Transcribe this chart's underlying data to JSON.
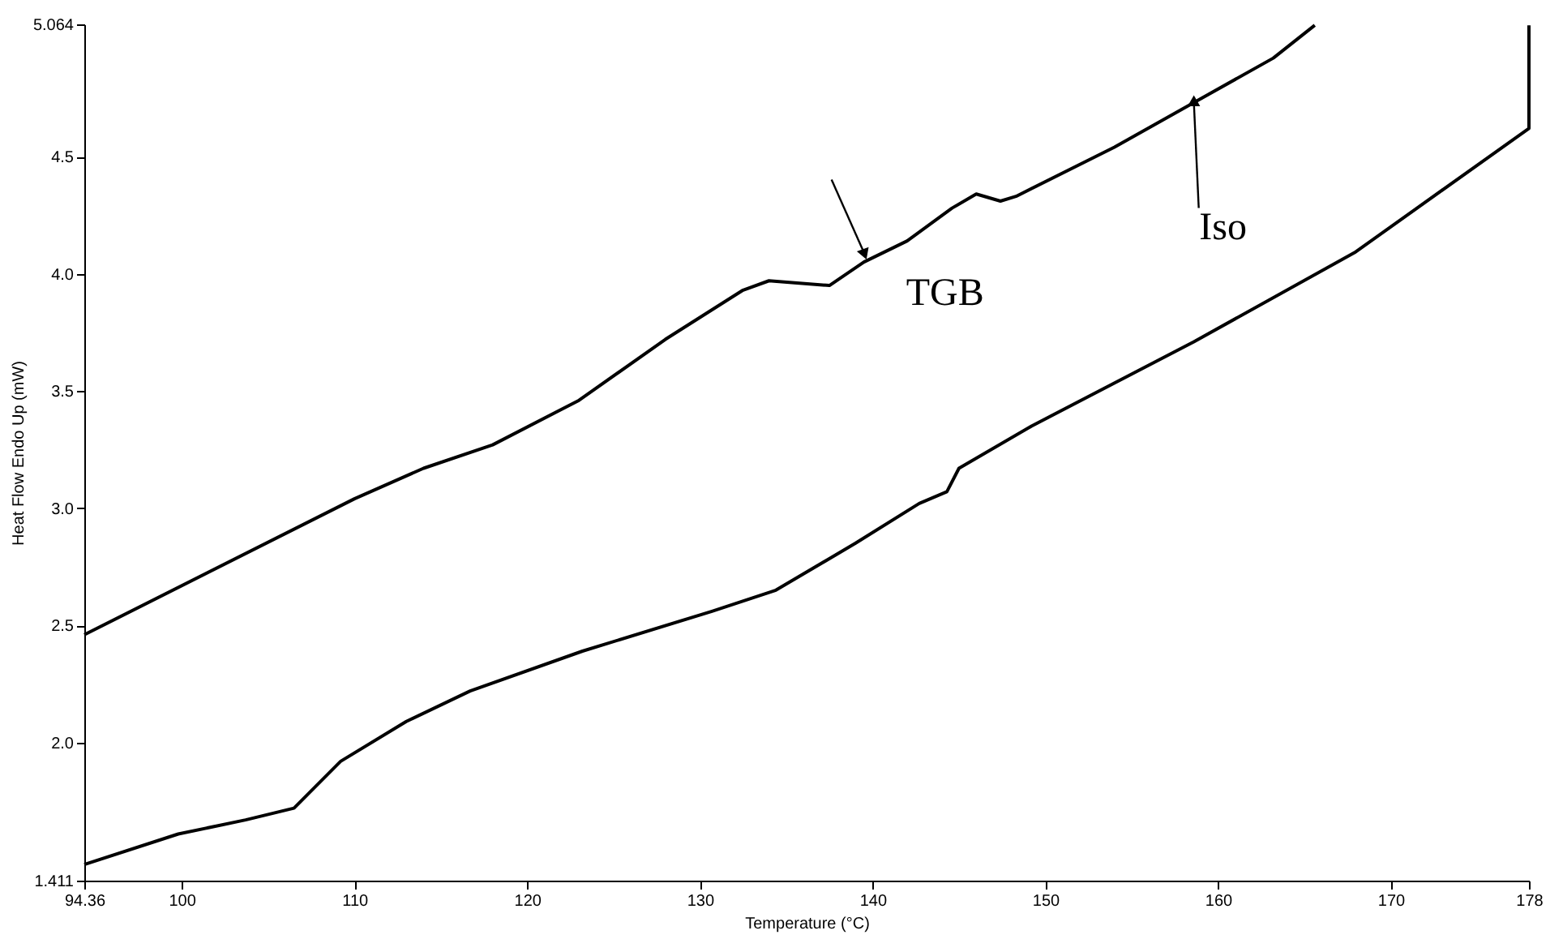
{
  "chart_data": {
    "type": "line",
    "xlabel": "Temperature (°C)",
    "ylabel": "Heat Flow Endo Up (mW)",
    "xlim": [
      94.36,
      178
    ],
    "xticks": [
      94.36,
      100,
      110,
      120,
      130,
      140,
      150,
      160,
      170,
      178
    ],
    "ylim": [
      1.411,
      5.064
    ],
    "yticks": [
      1.411,
      {
        "value": 2,
        "label": "2.0"
      },
      2.5,
      {
        "value": 3,
        "label": "3.0"
      },
      3.5,
      {
        "value": 4,
        "label": "4.0"
      },
      4.5,
      5.064
    ],
    "grid": false,
    "marker": "none",
    "line_style": "solid",
    "series": [
      {
        "color": "#000000",
        "x": [
          94.36,
          110,
          114,
          118,
          123,
          128,
          132.5,
          134,
          137.5,
          139.5,
          142,
          144.6,
          146,
          147.4,
          148.3,
          154,
          158.6,
          163.2,
          165.6
        ],
        "values": [
          2.46,
          3.04,
          3.17,
          3.27,
          3.46,
          3.72,
          3.93,
          3.97,
          3.95,
          4.05,
          4.14,
          4.28,
          4.34,
          4.31,
          4.33,
          4.54,
          4.73,
          4.92,
          5.06
        ]
      },
      {
        "color": "#000000",
        "x": [
          94.36,
          99.8,
          103.7,
          106.5,
          109.2,
          113,
          116.7,
          123.2,
          130.7,
          134.4,
          139,
          142.7,
          144.3,
          145,
          149.2,
          158.6,
          167.9,
          178,
          178
        ],
        "values": [
          1.48,
          1.61,
          1.67,
          1.72,
          1.92,
          2.09,
          2.22,
          2.39,
          2.56,
          2.65,
          2.85,
          3.02,
          3.07,
          3.17,
          3.35,
          3.71,
          4.09,
          4.62,
          5.06
        ]
      }
    ],
    "annotations": [
      {
        "text": "TGB",
        "x": 139.5,
        "y": 4.09
      },
      {
        "text": "Iso",
        "x": 158.6,
        "y": 4.73
      }
    ]
  }
}
